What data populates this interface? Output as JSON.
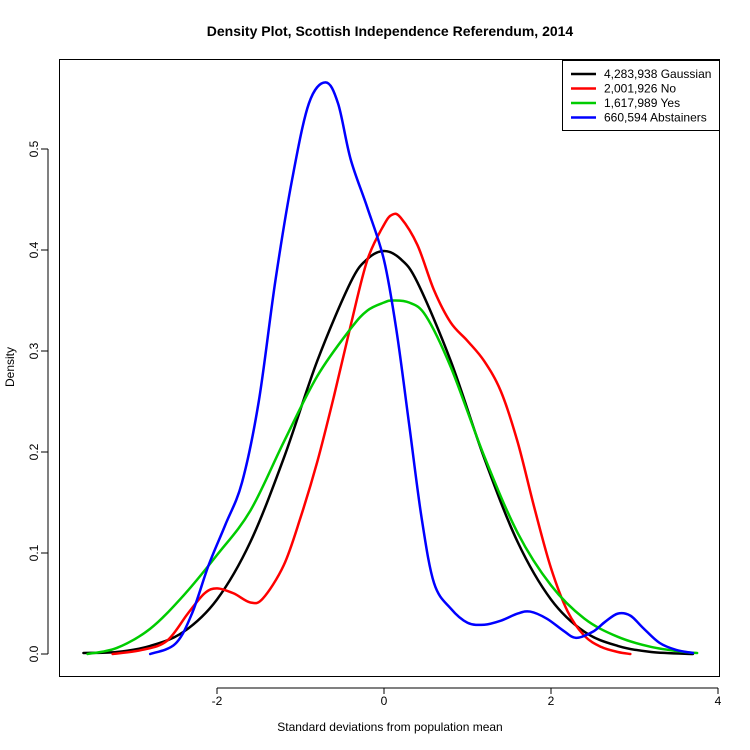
{
  "chart_data": {
    "type": "line",
    "title": "Density Plot, Scottish Independence Referendum, 2014",
    "xlabel": "Standard deviations from population mean",
    "ylabel": "Density",
    "xlim": [
      -4,
      4
    ],
    "ylim": [
      0,
      0.6
    ],
    "x_ticks": [
      -2,
      0,
      2,
      4
    ],
    "x_tick_labels": [
      "-2",
      "0",
      "2",
      "4"
    ],
    "y_ticks": [
      0.0,
      0.1,
      0.2,
      0.3,
      0.4,
      0.5
    ],
    "y_tick_labels": [
      "0.0",
      "0.1",
      "0.2",
      "0.3",
      "0.4",
      "0.5"
    ],
    "grid": false,
    "legend_position": "top-right",
    "series": [
      {
        "name": "4,283,938 Gaussian",
        "color": "#000000",
        "points": [
          [
            -3.6,
            0.001
          ],
          [
            -3.2,
            0.002
          ],
          [
            -2.8,
            0.008
          ],
          [
            -2.4,
            0.022
          ],
          [
            -2.0,
            0.054
          ],
          [
            -1.6,
            0.111
          ],
          [
            -1.2,
            0.194
          ],
          [
            -0.8,
            0.29
          ],
          [
            -0.4,
            0.368
          ],
          [
            -0.2,
            0.391
          ],
          [
            0.0,
            0.399
          ],
          [
            0.2,
            0.391
          ],
          [
            0.4,
            0.368
          ],
          [
            0.8,
            0.29
          ],
          [
            1.2,
            0.194
          ],
          [
            1.6,
            0.111
          ],
          [
            2.0,
            0.054
          ],
          [
            2.4,
            0.022
          ],
          [
            2.8,
            0.008
          ],
          [
            3.2,
            0.002
          ],
          [
            3.7,
            0.0
          ]
        ]
      },
      {
        "name": "2,001,926 No",
        "color": "#ff0000",
        "points": [
          [
            -3.25,
            0.0
          ],
          [
            -2.9,
            0.004
          ],
          [
            -2.6,
            0.013
          ],
          [
            -2.35,
            0.04
          ],
          [
            -2.15,
            0.06
          ],
          [
            -2.0,
            0.065
          ],
          [
            -1.8,
            0.06
          ],
          [
            -1.6,
            0.051
          ],
          [
            -1.45,
            0.055
          ],
          [
            -1.2,
            0.088
          ],
          [
            -1.0,
            0.135
          ],
          [
            -0.8,
            0.19
          ],
          [
            -0.6,
            0.255
          ],
          [
            -0.4,
            0.325
          ],
          [
            -0.2,
            0.39
          ],
          [
            0.0,
            0.425
          ],
          [
            0.1,
            0.435
          ],
          [
            0.2,
            0.432
          ],
          [
            0.4,
            0.405
          ],
          [
            0.6,
            0.36
          ],
          [
            0.8,
            0.328
          ],
          [
            1.0,
            0.31
          ],
          [
            1.2,
            0.29
          ],
          [
            1.4,
            0.26
          ],
          [
            1.6,
            0.21
          ],
          [
            1.8,
            0.145
          ],
          [
            2.0,
            0.085
          ],
          [
            2.2,
            0.042
          ],
          [
            2.4,
            0.018
          ],
          [
            2.6,
            0.007
          ],
          [
            2.8,
            0.002
          ],
          [
            2.95,
            0.0
          ]
        ]
      },
      {
        "name": "1,617,989 Yes",
        "color": "#00cc00",
        "points": [
          [
            -3.55,
            0.0
          ],
          [
            -3.2,
            0.006
          ],
          [
            -2.8,
            0.025
          ],
          [
            -2.4,
            0.058
          ],
          [
            -2.0,
            0.098
          ],
          [
            -1.6,
            0.142
          ],
          [
            -1.2,
            0.21
          ],
          [
            -0.8,
            0.275
          ],
          [
            -0.4,
            0.322
          ],
          [
            -0.2,
            0.34
          ],
          [
            0.0,
            0.348
          ],
          [
            0.1,
            0.35
          ],
          [
            0.3,
            0.348
          ],
          [
            0.5,
            0.335
          ],
          [
            0.8,
            0.284
          ],
          [
            1.2,
            0.196
          ],
          [
            1.6,
            0.12
          ],
          [
            2.0,
            0.068
          ],
          [
            2.4,
            0.035
          ],
          [
            2.8,
            0.017
          ],
          [
            3.2,
            0.007
          ],
          [
            3.6,
            0.002
          ],
          [
            3.75,
            0.001
          ]
        ]
      },
      {
        "name": "660,594 Abstainers",
        "color": "#0000ff",
        "points": [
          [
            -2.8,
            0.0
          ],
          [
            -2.5,
            0.01
          ],
          [
            -2.3,
            0.04
          ],
          [
            -2.1,
            0.088
          ],
          [
            -1.9,
            0.128
          ],
          [
            -1.7,
            0.17
          ],
          [
            -1.5,
            0.25
          ],
          [
            -1.3,
            0.37
          ],
          [
            -1.1,
            0.47
          ],
          [
            -0.9,
            0.545
          ],
          [
            -0.7,
            0.566
          ],
          [
            -0.55,
            0.545
          ],
          [
            -0.4,
            0.49
          ],
          [
            -0.2,
            0.442
          ],
          [
            0.0,
            0.39
          ],
          [
            0.15,
            0.32
          ],
          [
            0.3,
            0.228
          ],
          [
            0.45,
            0.135
          ],
          [
            0.6,
            0.07
          ],
          [
            0.8,
            0.045
          ],
          [
            1.0,
            0.031
          ],
          [
            1.2,
            0.029
          ],
          [
            1.4,
            0.033
          ],
          [
            1.6,
            0.04
          ],
          [
            1.75,
            0.042
          ],
          [
            1.95,
            0.035
          ],
          [
            2.15,
            0.023
          ],
          [
            2.3,
            0.016
          ],
          [
            2.5,
            0.022
          ],
          [
            2.65,
            0.032
          ],
          [
            2.8,
            0.04
          ],
          [
            2.95,
            0.038
          ],
          [
            3.1,
            0.026
          ],
          [
            3.3,
            0.011
          ],
          [
            3.5,
            0.004
          ],
          [
            3.7,
            0.001
          ]
        ]
      }
    ]
  }
}
